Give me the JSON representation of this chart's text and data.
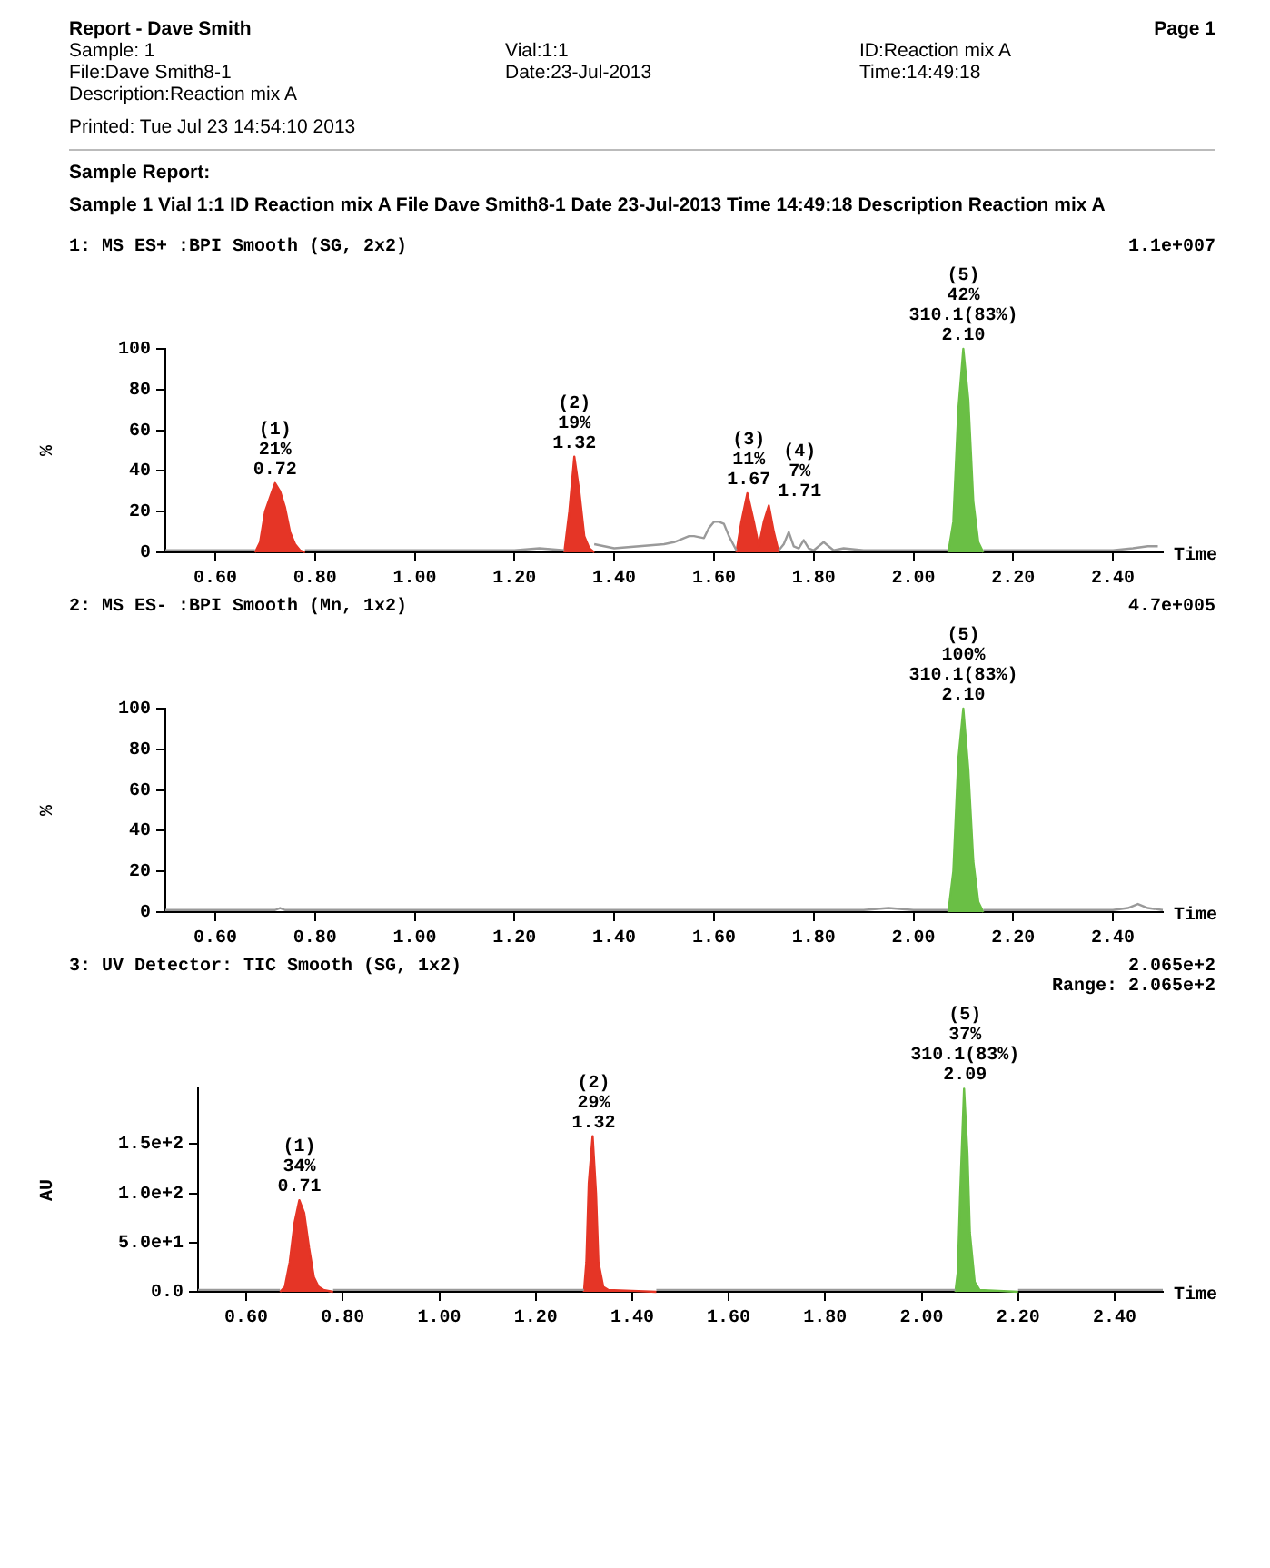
{
  "chart_data": [
    {
      "type": "other",
      "title": "Report - Dave Smith",
      "subtitle": "Sample 1  Vial 1:1 ID Reaction mix A File Dave Smith8-1 Date 23-Jul-2013 Time 14:49:18 Description Reaction mix A",
      "annotations": [
        "Page 1",
        "Sample: 1",
        "Vial:1:1",
        "ID:Reaction mix A",
        "File:Dave Smith8-1",
        "Date:23-Jul-2013",
        "Time:14:49:18",
        "Description:Reaction mix A",
        "Printed: Tue Jul 23 14:54:10 2013",
        "Sample Report:"
      ]
    },
    {
      "type": "line",
      "title": "1: MS ES+ :BPI Smooth (SG, 2x2)",
      "xlabel": "Time",
      "ylabel": "%",
      "xlim": [
        0.5,
        2.5
      ],
      "xticks": [
        {
          "value": 0.6,
          "label": "0.60"
        },
        {
          "value": 0.8,
          "label": "0.80"
        },
        {
          "value": 1.0,
          "label": "1.00"
        },
        {
          "value": 1.2,
          "label": "1.20"
        },
        {
          "value": 1.4,
          "label": "1.40"
        },
        {
          "value": 1.6,
          "label": "1.60"
        },
        {
          "value": 1.8,
          "label": "1.80"
        },
        {
          "value": 2.0,
          "label": "2.00"
        },
        {
          "value": 2.2,
          "label": "2.20"
        },
        {
          "value": 2.4,
          "label": "2.40"
        }
      ],
      "ylim": [
        0,
        100
      ],
      "yticks": [
        0,
        20,
        40,
        60,
        80,
        100
      ],
      "series": [
        {
          "type": "line",
          "color": "#9a9a9a",
          "x": [
            0.5,
            0.6,
            0.68,
            0.69,
            0.78,
            0.9,
            1.0,
            1.1,
            1.2,
            1.25,
            1.3,
            1.31,
            1.36,
            1.38,
            1.4,
            1.45,
            1.5,
            1.52,
            1.54,
            1.55,
            1.56,
            1.58,
            1.59,
            1.6,
            1.61,
            1.62,
            1.63,
            1.645,
            1.66,
            1.73,
            1.74,
            1.75,
            1.76,
            1.77,
            1.78,
            1.79,
            1.8,
            1.82,
            1.84,
            1.86,
            1.9,
            2.0,
            2.07,
            2.08,
            2.14,
            2.2,
            2.3,
            2.4,
            2.44,
            2.47,
            2.49
          ],
          "values": [
            1,
            1,
            1,
            null,
            1,
            1,
            1,
            1,
            1,
            2,
            1,
            null,
            4,
            3,
            2,
            3,
            4,
            5,
            7,
            8,
            8,
            7,
            12,
            15,
            15,
            14,
            8,
            1,
            null,
            1,
            4,
            10,
            3,
            2,
            6,
            2,
            1,
            5,
            1,
            2,
            1,
            1,
            1,
            null,
            1,
            1,
            1,
            1,
            2,
            3,
            3
          ]
        },
        {
          "type": "area",
          "color": "#e53526",
          "x": [
            0.68,
            0.69,
            0.7,
            0.71,
            0.72,
            0.73,
            0.74,
            0.75,
            0.76,
            0.77,
            0.78
          ],
          "values": [
            0,
            5,
            20,
            27,
            34,
            30,
            22,
            10,
            4,
            1,
            0
          ]
        },
        {
          "type": "area",
          "color": "#e53526",
          "x": [
            1.3,
            1.31,
            1.32,
            1.33,
            1.34,
            1.35,
            1.36
          ],
          "values": [
            0,
            20,
            47,
            30,
            8,
            2,
            0
          ]
        },
        {
          "type": "area",
          "color": "#e53526",
          "x": [
            1.645,
            1.655,
            1.667,
            1.68,
            1.69,
            1.7,
            1.71,
            1.72,
            1.73
          ],
          "values": [
            0,
            15,
            29,
            15,
            3,
            15,
            23,
            10,
            0
          ]
        },
        {
          "type": "area",
          "color": "#6abf45",
          "x": [
            2.07,
            2.08,
            2.09,
            2.1,
            2.11,
            2.12,
            2.13,
            2.14
          ],
          "values": [
            0,
            15,
            70,
            100,
            75,
            25,
            5,
            0
          ]
        }
      ],
      "annotations": [
        {
          "text": "(1)\n21%\n0.72",
          "x": 0.72,
          "y": 34
        },
        {
          "text": "(2)\n19%\n1.32",
          "x": 1.32,
          "y": 47
        },
        {
          "text": "(3)\n11%\n1.67",
          "x": 1.67,
          "y": 29
        },
        {
          "text": "(4)\n7%\n1.71",
          "x": 1.71,
          "y": 23
        },
        {
          "text": "(5)\n42%\n310.1(83%)\n2.10",
          "x": 2.1,
          "y": 100
        },
        "1.1e+007"
      ]
    },
    {
      "type": "line",
      "title": "2: MS ES- :BPI Smooth (Mn, 1x2)",
      "xlabel": "Time",
      "ylabel": "%",
      "xlim": [
        0.5,
        2.5
      ],
      "xticks": [
        {
          "value": 0.6,
          "label": "0.60"
        },
        {
          "value": 0.8,
          "label": "0.80"
        },
        {
          "value": 1.0,
          "label": "1.00"
        },
        {
          "value": 1.2,
          "label": "1.20"
        },
        {
          "value": 1.4,
          "label": "1.40"
        },
        {
          "value": 1.6,
          "label": "1.60"
        },
        {
          "value": 1.8,
          "label": "1.80"
        },
        {
          "value": 2.0,
          "label": "2.00"
        },
        {
          "value": 2.2,
          "label": "2.20"
        },
        {
          "value": 2.4,
          "label": "2.40"
        }
      ],
      "ylim": [
        0,
        100
      ],
      "yticks": [
        0,
        20,
        40,
        60,
        80,
        100
      ],
      "series": [
        {
          "type": "line",
          "color": "#9a9a9a",
          "x": [
            0.5,
            0.72,
            0.73,
            0.74,
            1.0,
            1.5,
            1.9,
            1.95,
            2.0,
            2.07,
            2.08,
            2.14,
            2.3,
            2.4,
            2.43,
            2.45,
            2.47,
            2.5
          ],
          "values": [
            1,
            1,
            2,
            1,
            1,
            1,
            1,
            2,
            1,
            1,
            null,
            1,
            1,
            1,
            2,
            4,
            2,
            1
          ]
        },
        {
          "type": "area",
          "color": "#6abf45",
          "x": [
            2.07,
            2.08,
            2.09,
            2.1,
            2.11,
            2.12,
            2.13,
            2.14
          ],
          "values": [
            0,
            20,
            75,
            100,
            70,
            25,
            5,
            0
          ]
        }
      ],
      "annotations": [
        {
          "text": "(5)\n100%\n310.1(83%)\n2.10",
          "x": 2.1,
          "y": 100
        },
        "4.7e+005"
      ]
    },
    {
      "type": "line",
      "title": "3: UV Detector: TIC Smooth (SG, 1x2)",
      "xlabel": "Time",
      "ylabel": "AU",
      "xlim": [
        0.5,
        2.5
      ],
      "xticks": [
        {
          "value": 0.6,
          "label": "0.60"
        },
        {
          "value": 0.8,
          "label": "0.80"
        },
        {
          "value": 1.0,
          "label": "1.00"
        },
        {
          "value": 1.2,
          "label": "1.20"
        },
        {
          "value": 1.4,
          "label": "1.40"
        },
        {
          "value": 1.6,
          "label": "1.60"
        },
        {
          "value": 1.8,
          "label": "1.80"
        },
        {
          "value": 2.0,
          "label": "2.00"
        },
        {
          "value": 2.2,
          "label": "2.20"
        },
        {
          "value": 2.4,
          "label": "2.40"
        }
      ],
      "ylim": [
        0,
        206.5
      ],
      "yticks": [
        {
          "value": 0,
          "label": "0.0"
        },
        {
          "value": 50,
          "label": "5.0e+1"
        },
        {
          "value": 100,
          "label": "1.0e+2"
        },
        {
          "value": 150,
          "label": "1.5e+2"
        }
      ],
      "series": [
        {
          "type": "line",
          "color": "#9a9a9a",
          "x": [
            0.5,
            0.67,
            0.68,
            0.78,
            1.0,
            1.3,
            1.31,
            1.45,
            1.8,
            2.07,
            2.08,
            2.2,
            2.5
          ],
          "values": [
            2,
            2,
            null,
            2,
            2,
            2,
            null,
            2,
            2,
            2,
            null,
            2,
            2
          ]
        },
        {
          "type": "area",
          "color": "#e53526",
          "x": [
            0.67,
            0.68,
            0.69,
            0.7,
            0.71,
            0.72,
            0.73,
            0.74,
            0.75,
            0.76,
            0.78
          ],
          "values": [
            0,
            5,
            30,
            70,
            93,
            80,
            45,
            15,
            5,
            2,
            0
          ]
        },
        {
          "type": "area",
          "color": "#e53526",
          "x": [
            1.3,
            1.305,
            1.31,
            1.318,
            1.325,
            1.33,
            1.34,
            1.35,
            1.4,
            1.45
          ],
          "values": [
            0,
            30,
            110,
            158,
            100,
            30,
            5,
            2,
            1,
            0
          ]
        },
        {
          "type": "area",
          "color": "#6abf45",
          "x": [
            2.07,
            2.075,
            2.08,
            2.088,
            2.095,
            2.1,
            2.11,
            2.12,
            2.16,
            2.2
          ],
          "values": [
            0,
            20,
            100,
            206,
            140,
            60,
            10,
            2,
            1,
            0
          ]
        }
      ],
      "annotations": [
        {
          "text": "(1)\n34%\n0.71",
          "x": 0.71,
          "y": 93
        },
        {
          "text": "(2)\n29%\n1.32",
          "x": 1.32,
          "y": 158
        },
        {
          "text": "(5)\n37%\n310.1(83%)\n2.09",
          "x": 2.09,
          "y": 206.5
        },
        "2.065e+2",
        "Range: 2.065e+2"
      ]
    }
  ]
}
